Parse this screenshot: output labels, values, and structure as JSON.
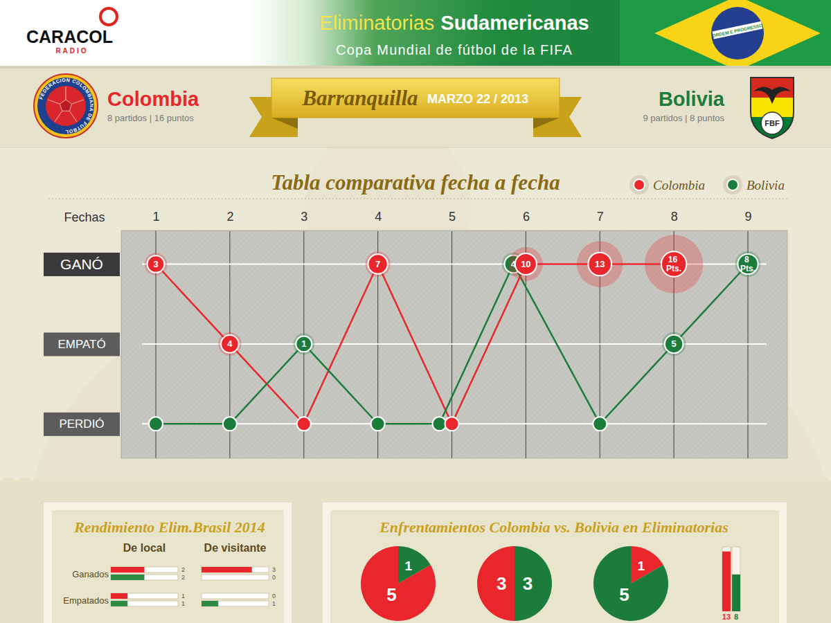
{
  "header": {
    "brand": "CARACOL",
    "brand_sub": "RADIO",
    "title_1": "Eliminatorias",
    "title_2": "Sudamericanas",
    "subtitle": "Copa Mundial de fútbol de la FIFA",
    "flag_motto": "ORDEM E PROGRESSO"
  },
  "match": {
    "home": {
      "name": "Colombia",
      "record": "8 partidos | 16 puntos",
      "crest_text": "FEDERACION COLOMBIANA DE FUTBOL"
    },
    "away": {
      "name": "Bolivia",
      "record": "9 partidos | 8 puntos",
      "crest_text": "FBF"
    },
    "city": "Barranquilla",
    "date": "MARZO 22 / 2013"
  },
  "panels": {
    "performance_title": "Rendimiento Elim.Brasil 2014",
    "matchups_title": "Enfrentamientos Colombia vs. Bolivia en Eliminatorias"
  },
  "chart_data": [
    {
      "type": "line",
      "title": "Tabla comparativa fecha a fecha",
      "xlabel": "Fechas",
      "categories": [
        "1",
        "2",
        "3",
        "4",
        "5",
        "6",
        "7",
        "8",
        "9"
      ],
      "ylim": [
        -0.43,
        2.42
      ],
      "yticks": [
        {
          "value": 2,
          "label": "GANÓ"
        },
        {
          "value": 1,
          "label": "EMPATÓ"
        },
        {
          "value": 0,
          "label": "PERDIÓ"
        }
      ],
      "grid": true,
      "legend": "top-right",
      "marker": "circle",
      "series": [
        {
          "name": "Colombia",
          "color": "#e8262c",
          "values": [
            2,
            1,
            0,
            2,
            0,
            2,
            2,
            2,
            null
          ],
          "points": [
            3,
            4,
            null,
            7,
            null,
            10,
            13,
            16,
            null
          ],
          "points_labels": [
            "3",
            "4",
            null,
            "7",
            null,
            "10",
            "13",
            "16 Pts.",
            null
          ]
        },
        {
          "name": "Bolivia",
          "color": "#1b7c3c",
          "values": [
            0,
            0,
            1,
            0,
            0,
            2,
            0,
            1,
            2
          ],
          "points": [
            null,
            null,
            1,
            null,
            null,
            4,
            null,
            5,
            8
          ],
          "points_labels": [
            null,
            null,
            "1",
            null,
            null,
            "4",
            null,
            "5",
            "8 Pts."
          ]
        }
      ]
    },
    {
      "type": "bar",
      "orientation": "horizontal",
      "title": "De local",
      "categories": [
        "Ganados",
        "Empatados"
      ],
      "xlim": [
        0,
        4
      ],
      "tick_labels": "y",
      "data_labels": true,
      "series": [
        {
          "color": "#e8262c",
          "values": [
            2,
            1
          ]
        },
        {
          "color": "#2e8b45",
          "values": [
            2,
            1
          ]
        }
      ]
    },
    {
      "type": "bar",
      "orientation": "horizontal",
      "title": "De visitante",
      "categories": [
        null,
        null
      ],
      "xlim": [
        0,
        4
      ],
      "tick_labels": false,
      "data_labels": true,
      "series": [
        {
          "color": "#e8262c",
          "values": [
            3,
            0
          ]
        },
        {
          "color": "#2e8b45",
          "values": [
            0,
            1
          ]
        }
      ]
    },
    {
      "type": "pie",
      "values": [
        1,
        5
      ],
      "colors": [
        "#1b7c3c",
        "#e8262c"
      ],
      "data_labels": true
    },
    {
      "type": "pie",
      "values": [
        3,
        3
      ],
      "colors": [
        "#1b7c3c",
        "#e8262c"
      ],
      "data_labels": true
    },
    {
      "type": "pie",
      "values": [
        1,
        5
      ],
      "colors": [
        "#e8262c",
        "#1b7c3c"
      ],
      "data_labels": true
    },
    {
      "type": "bar",
      "categories": [
        null,
        null
      ],
      "values": [
        13,
        8
      ],
      "colors": [
        "#e8262c",
        "#1b7c3c"
      ],
      "ylim": [
        0,
        14
      ],
      "tick_labels": false,
      "data_labels": true
    }
  ]
}
